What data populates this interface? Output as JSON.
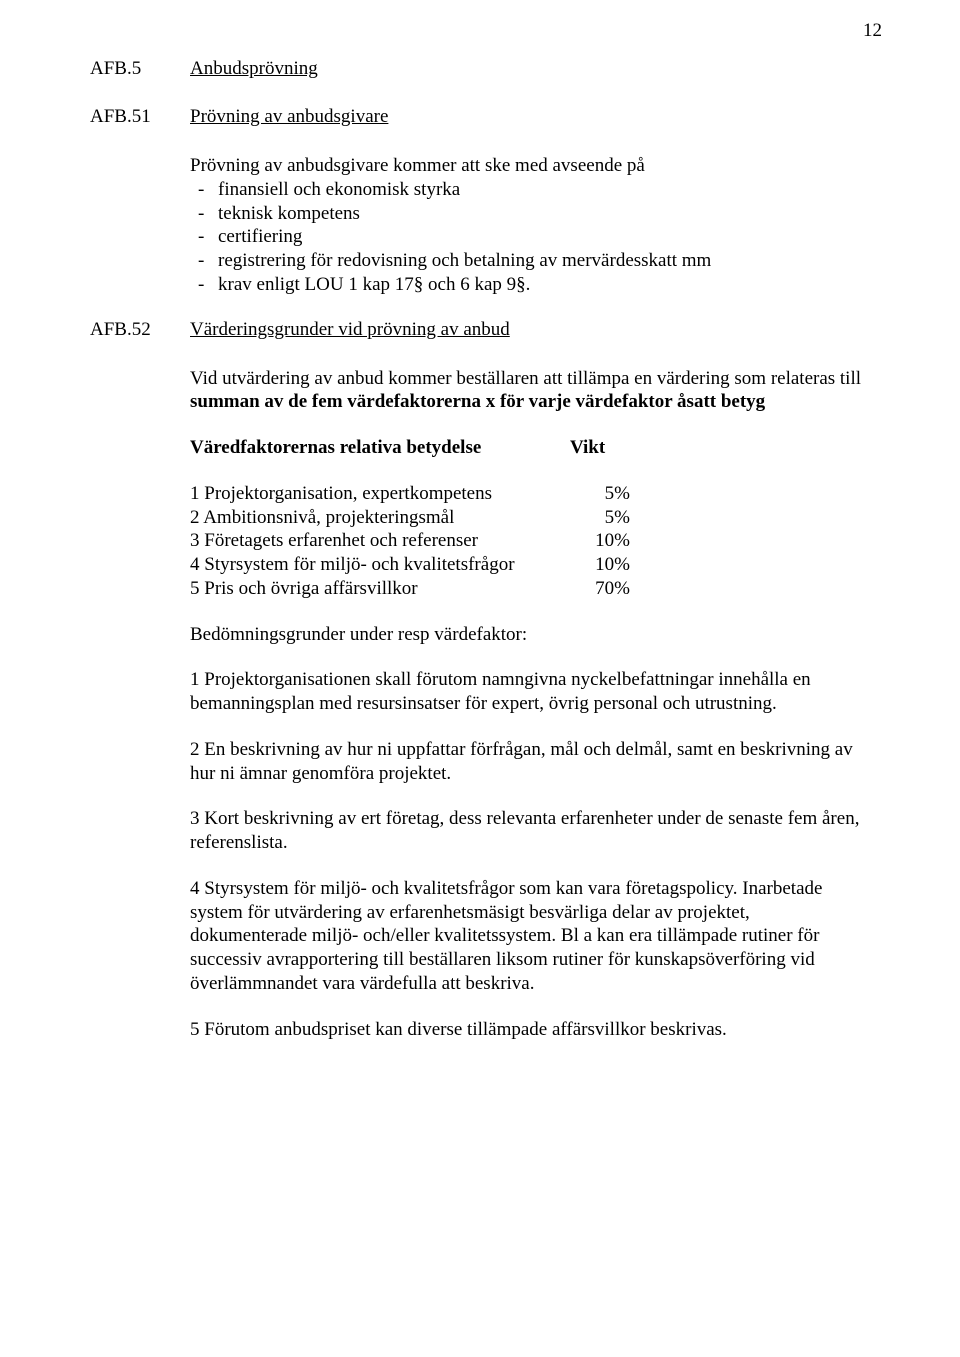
{
  "page_number": "12",
  "sections": {
    "afb5": {
      "code": "AFB.5",
      "title": "Anbudsprövning"
    },
    "afb51": {
      "code": "AFB.51",
      "title": "Prövning av anbudsgivare",
      "intro": "Prövning av anbudsgivare kommer att ske med avseende på",
      "bullets": [
        "finansiell och ekonomisk styrka",
        "teknisk kompetens",
        "certifiering",
        "registrering för redovisning och betalning av mervärdesskatt mm",
        "krav enligt LOU 1 kap 17§ och 6 kap 9§."
      ]
    },
    "afb52": {
      "code": "AFB.52",
      "title": "Värderingsgrunder vid prövning av anbud",
      "para1a": "Vid utvärdering av anbud kommer beställaren att tillämpa en värdering som relateras till ",
      "para1b": "summan av de fem värdefaktorerna x för varje värdefaktor åsatt betyg",
      "factor_header_label": "Väredfaktorernas relativa betydelse",
      "factor_header_vikt": "Vikt",
      "factors": [
        {
          "label": "1 Projektorganisation, expertkompetens",
          "value": "5%"
        },
        {
          "label": "2 Ambitionsnivå, projekteringsmål",
          "value": "5%"
        },
        {
          "label": "3 Företagets erfarenhet och referenser",
          "value": "10%"
        },
        {
          "label": "4 Styrsystem för miljö- och kvalitetsfrågor",
          "value": "10%"
        },
        {
          "label": "5 Pris och övriga affärsvillkor",
          "value": "70%"
        }
      ],
      "assessment_header": "Bedömningsgrunder under resp värdefaktor:",
      "items": [
        "1 Projektorganisationen skall förutom namngivna nyckelbefattningar innehålla en bemanningsplan med resursinsatser för expert, övrig personal och utrustning.",
        "2 En beskrivning av hur ni uppfattar förfrågan, mål och delmål, samt en beskrivning av hur ni ämnar genomföra projektet.",
        "3 Kort beskrivning av ert företag, dess relevanta erfarenheter under de senaste fem åren, referenslista.",
        "4 Styrsystem för miljö- och kvalitetsfrågor som kan vara företagspolicy. Inarbetade system för utvärdering av erfarenhetsmäsigt besvärliga delar av projektet, dokumenterade miljö- och/eller kvalitetssystem. Bl a kan era tillämpade rutiner för successiv avrapportering till beställaren liksom rutiner för kunskapsöverföring vid överlämmnandet vara värdefulla att beskriva.",
        "5 Förutom anbudspriset kan diverse tillämpade affärsvillkor beskrivas."
      ]
    }
  }
}
